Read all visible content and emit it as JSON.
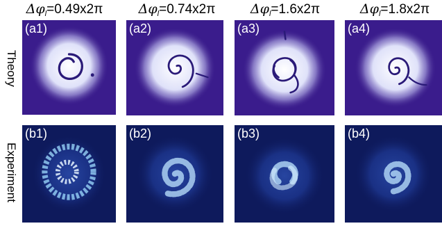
{
  "columns": [
    {
      "symbol": "Δφ",
      "sub": "l",
      "value": "=0.49x2π"
    },
    {
      "symbol": "Δφ",
      "sub": "l",
      "value": "=0.74x2π"
    },
    {
      "symbol": "Δφ",
      "sub": "l",
      "value": "=1.6x2π"
    },
    {
      "symbol": "Δφ",
      "sub": "l",
      "value": "=1.8x2π"
    }
  ],
  "rows": [
    {
      "label": "Theory",
      "panels": [
        "(a1)",
        "(a2)",
        "(a3)",
        "(a4)"
      ]
    },
    {
      "label": "Experiment",
      "panels": [
        "(b1)",
        "(b2)",
        "(b3)",
        "(b4)"
      ]
    }
  ],
  "colors": {
    "theory_background": "#3a1c8c",
    "experiment_background": "#0e1a5c",
    "glow": "#e8ecff",
    "spiral_dark": "#2a1a78"
  }
}
